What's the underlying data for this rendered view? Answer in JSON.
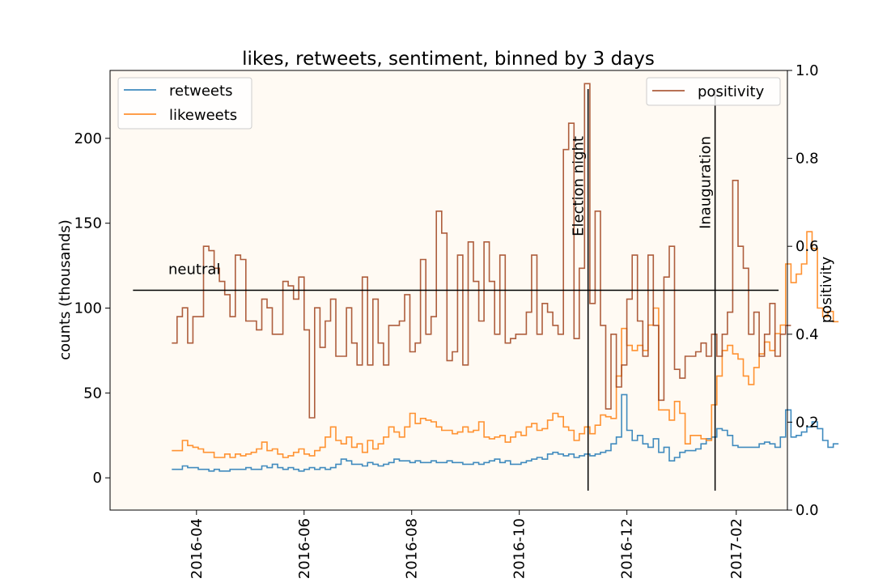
{
  "chart_data": {
    "type": "line",
    "title": "likes, retweets, sentiment, binned by 3 days",
    "xlabel": "",
    "ylabel_left": "counts (thousands)",
    "ylabel_right": "positivity",
    "ylim_left": [
      -19,
      240
    ],
    "ylim_right": [
      0.0,
      1.0
    ],
    "xlim": [
      "2016-02-12",
      "2017-03-02"
    ],
    "drawstyle": "steps-post",
    "bin_days": 3,
    "x_start": "2016-03-18",
    "x_ticks": [
      "2016-04",
      "2016-06",
      "2016-08",
      "2016-10",
      "2016-12",
      "2017-02"
    ],
    "y_ticks_left": [
      0,
      50,
      100,
      150,
      200
    ],
    "y_ticks_right": [
      "0.0",
      "0.2",
      "0.4",
      "0.6",
      "0.8",
      "1.0"
    ],
    "legend_left": {
      "placement": "upper-left",
      "entries": [
        "retweets",
        "likeweets"
      ]
    },
    "legend_right": {
      "placement": "upper-right",
      "entries": [
        "positivity"
      ]
    },
    "background": "#fffaf3",
    "series": [
      {
        "name": "retweets",
        "axis": "left",
        "color": "#1f77b4",
        "values": [
          5,
          5,
          7,
          6,
          6,
          5,
          5,
          4,
          5,
          4,
          4,
          5,
          5,
          5,
          6,
          5,
          5,
          7,
          6,
          8,
          6,
          5,
          6,
          5,
          4,
          5,
          6,
          5,
          6,
          5,
          6,
          8,
          11,
          10,
          8,
          8,
          7,
          9,
          8,
          7,
          8,
          9,
          11,
          10,
          10,
          9,
          10,
          9,
          9,
          10,
          9,
          9,
          10,
          9,
          9,
          8,
          8,
          9,
          8,
          9,
          10,
          11,
          9,
          10,
          8,
          8,
          9,
          10,
          11,
          12,
          11,
          14,
          15,
          14,
          13,
          14,
          12,
          13,
          14,
          13,
          14,
          15,
          16,
          20,
          24,
          49,
          28,
          22,
          25,
          20,
          18,
          23,
          15,
          18,
          10,
          12,
          15,
          16,
          16,
          17,
          20,
          23,
          24,
          29,
          28,
          25,
          19,
          18,
          18,
          18,
          18,
          20,
          21,
          20,
          18,
          24,
          40,
          24,
          25,
          27,
          30,
          33,
          29,
          22,
          18,
          20
        ]
      },
      {
        "name": "likeweets",
        "axis": "left",
        "color": "#ff7f0e",
        "values": [
          16,
          16,
          22,
          19,
          18,
          17,
          15,
          15,
          12,
          12,
          14,
          12,
          14,
          13,
          14,
          15,
          17,
          21,
          16,
          17,
          14,
          12,
          13,
          15,
          17,
          14,
          13,
          16,
          18,
          24,
          30,
          22,
          20,
          24,
          18,
          20,
          15,
          22,
          17,
          20,
          24,
          30,
          27,
          24,
          30,
          38,
          32,
          35,
          34,
          33,
          30,
          28,
          28,
          26,
          27,
          30,
          27,
          28,
          33,
          24,
          23,
          24,
          25,
          21,
          24,
          27,
          25,
          30,
          32,
          28,
          29,
          34,
          38,
          36,
          30,
          28,
          22,
          26,
          30,
          26,
          31,
          37,
          36,
          35,
          60,
          88,
          78,
          75,
          78,
          75,
          90,
          100,
          40,
          40,
          34,
          45,
          38,
          20,
          25,
          25,
          23,
          22,
          43,
          60,
          75,
          78,
          73,
          70,
          60,
          55,
          65,
          73,
          80,
          75,
          85,
          90,
          126,
          115,
          120,
          126,
          145,
          135,
          100,
          95,
          98,
          92
        ]
      },
      {
        "name": "positivity",
        "axis": "right",
        "color": "#a0421c",
        "values": [
          0.38,
          0.44,
          0.46,
          0.38,
          0.44,
          0.44,
          0.6,
          0.59,
          0.55,
          0.52,
          0.49,
          0.44,
          0.58,
          0.57,
          0.43,
          0.43,
          0.41,
          0.48,
          0.46,
          0.4,
          0.4,
          0.52,
          0.51,
          0.48,
          0.53,
          0.41,
          0.21,
          0.46,
          0.37,
          0.43,
          0.48,
          0.35,
          0.35,
          0.46,
          0.38,
          0.33,
          0.53,
          0.33,
          0.48,
          0.38,
          0.33,
          0.42,
          0.42,
          0.43,
          0.49,
          0.36,
          0.38,
          0.57,
          0.4,
          0.44,
          0.68,
          0.63,
          0.34,
          0.36,
          0.58,
          0.33,
          0.61,
          0.52,
          0.43,
          0.61,
          0.52,
          0.4,
          0.58,
          0.38,
          0.39,
          0.4,
          0.4,
          0.45,
          0.58,
          0.4,
          0.47,
          0.45,
          0.42,
          0.4,
          0.82,
          0.88,
          0.39,
          0.55,
          0.97,
          0.47,
          0.68,
          0.42,
          0.23,
          0.4,
          0.28,
          0.33,
          0.48,
          0.58,
          0.43,
          0.35,
          0.58,
          0.42,
          0.25,
          0.53,
          0.6,
          0.32,
          0.3,
          0.35,
          0.35,
          0.36,
          0.38,
          0.35,
          0.4,
          0.35,
          0.4,
          0.45,
          0.75,
          0.6,
          0.55,
          0.4,
          0.45,
          0.35,
          0.4,
          0.47,
          0.35,
          0.4,
          0.42
        ],
        "x_offset_bins": 0
      }
    ],
    "hlines": [
      {
        "y_right": 0.5,
        "from": "2016-02-25",
        "to": "2017-02-25",
        "label": "neutral",
        "color": "#000000"
      }
    ],
    "vlines": [
      {
        "x": "2016-11-09",
        "label": "Election night",
        "color": "#000000"
      },
      {
        "x": "2017-01-20",
        "label": "Inauguration",
        "color": "#000000"
      }
    ]
  }
}
